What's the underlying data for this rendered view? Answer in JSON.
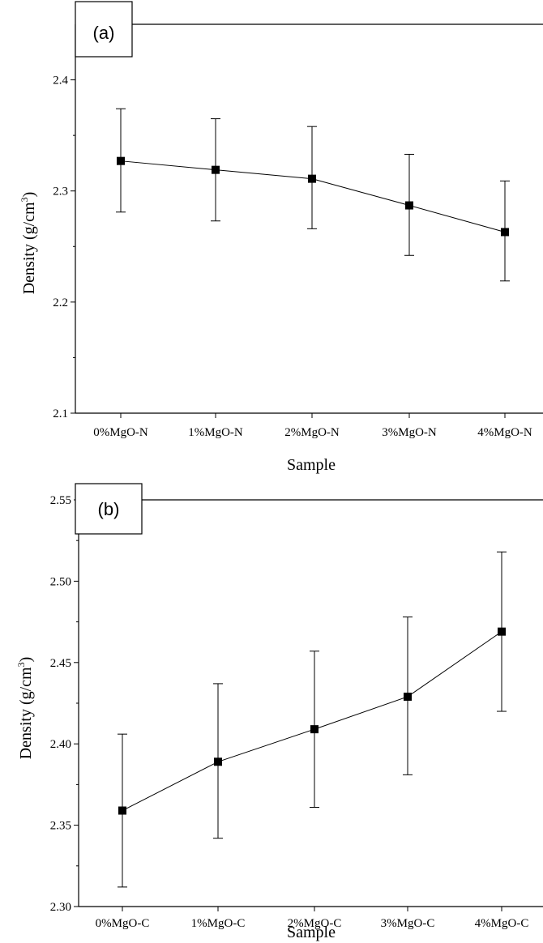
{
  "chart_data": [
    {
      "type": "line",
      "panel_label": "(a)",
      "categories": [
        "0%MgO-N",
        "1%MgO-N",
        "2%MgO-N",
        "3%MgO-N",
        "4%MgO-N"
      ],
      "values": [
        2.327,
        2.319,
        2.311,
        2.287,
        2.263
      ],
      "error_high": [
        2.374,
        2.365,
        2.358,
        2.333,
        2.309
      ],
      "error_low": [
        2.281,
        2.273,
        2.266,
        2.242,
        2.219
      ],
      "xlabel": "Sample",
      "ylabel": "Density (g/cm",
      "ylabel_sup": "3",
      "ylabel_close": ")",
      "ylim": [
        2.1,
        2.45
      ],
      "yticks": [
        2.1,
        2.2,
        2.3,
        2.4
      ],
      "ytick_labels": [
        "2.1",
        "2.2",
        "2.3",
        "2.4"
      ],
      "grid": false,
      "marker": "square",
      "line_color": "#000000"
    },
    {
      "type": "line",
      "panel_label": "(b)",
      "categories": [
        "0%MgO-C",
        "1%MgO-C",
        "2%MgO-C",
        "3%MgO-C",
        "4%MgO-C"
      ],
      "values": [
        2.359,
        2.389,
        2.409,
        2.429,
        2.469
      ],
      "error_high": [
        2.406,
        2.437,
        2.457,
        2.478,
        2.518
      ],
      "error_low": [
        2.312,
        2.342,
        2.361,
        2.381,
        2.42
      ],
      "xlabel": "Sample",
      "ylabel": "Density (g/cm",
      "ylabel_sup": "3",
      "ylabel_close": ")",
      "ylim": [
        2.3,
        2.55
      ],
      "yticks": [
        2.3,
        2.35,
        2.4,
        2.45,
        2.5,
        2.55
      ],
      "ytick_labels": [
        "2.30",
        "2.35",
        "2.40",
        "2.45",
        "2.50",
        "2.55"
      ],
      "grid": false,
      "marker": "square",
      "line_color": "#000000"
    }
  ]
}
